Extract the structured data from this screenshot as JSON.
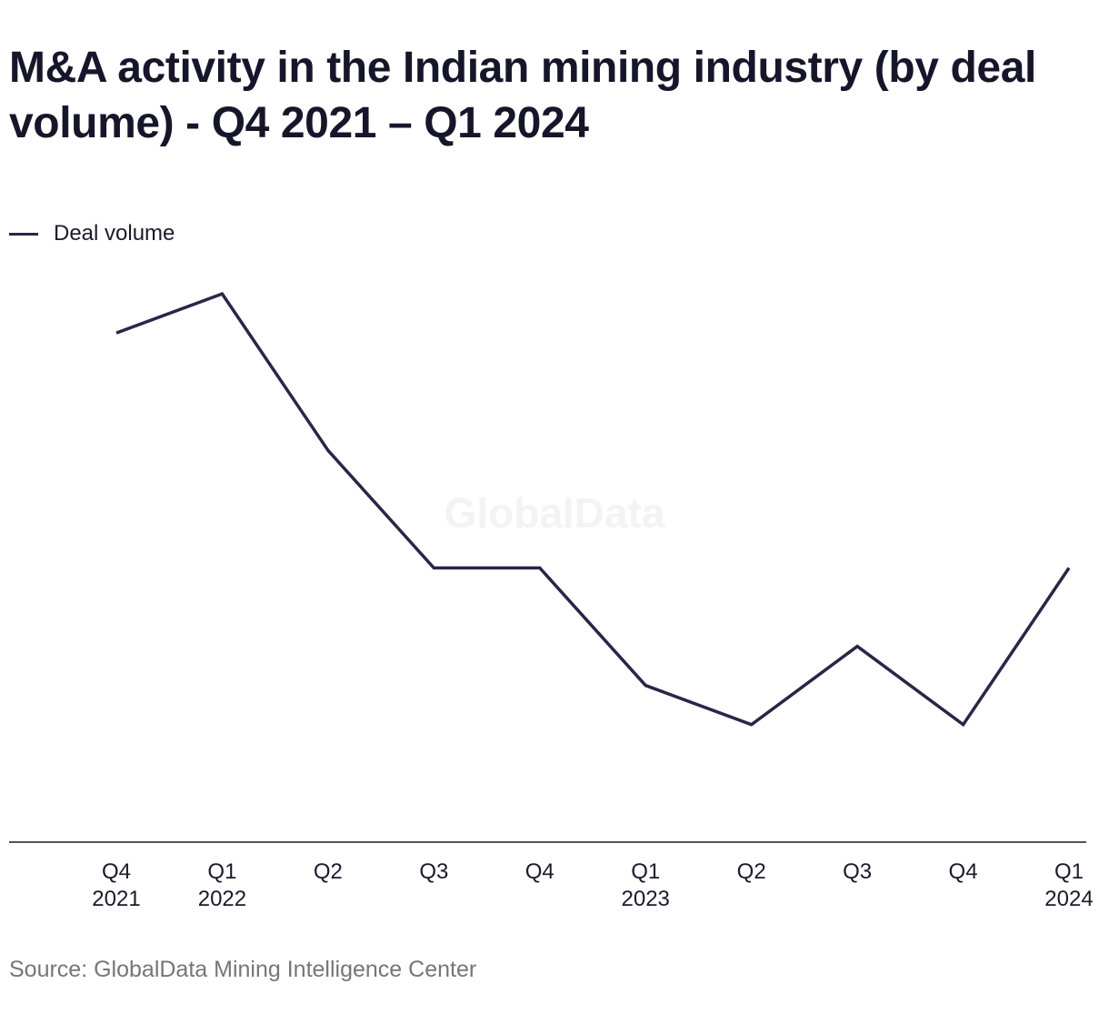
{
  "title": "M&A activity in the Indian mining industry (by deal volume) - Q4 2021 – Q1 2024",
  "legend": {
    "label": "Deal volume"
  },
  "watermark": "GlobalData",
  "source": "Source: GlobalData Mining Intelligence Center",
  "colors": {
    "line": "#2e2347",
    "axis": "#1a1a1a",
    "watermark": "#f3f3f5"
  },
  "chart_data": {
    "type": "line",
    "title": "M&A activity in the Indian mining industry (by deal volume) - Q4 2021 – Q1 2024",
    "xlabel": "",
    "ylabel": "",
    "categories": [
      [
        "Q4",
        "2021"
      ],
      [
        "Q1",
        "2022"
      ],
      [
        "Q2",
        ""
      ],
      [
        "Q3",
        ""
      ],
      [
        "Q4",
        ""
      ],
      [
        "Q1",
        "2023"
      ],
      [
        "Q2",
        ""
      ],
      [
        "Q3",
        ""
      ],
      [
        "Q4",
        ""
      ],
      [
        "Q1",
        "2024"
      ]
    ],
    "series": [
      {
        "name": "Deal volume",
        "values": [
          12,
          13,
          9,
          6,
          6,
          3,
          2,
          4,
          2,
          6
        ]
      }
    ],
    "ylim": [
      -1,
      14
    ],
    "y_axis_visible": false,
    "grid": false,
    "legend_position": "top-left"
  }
}
